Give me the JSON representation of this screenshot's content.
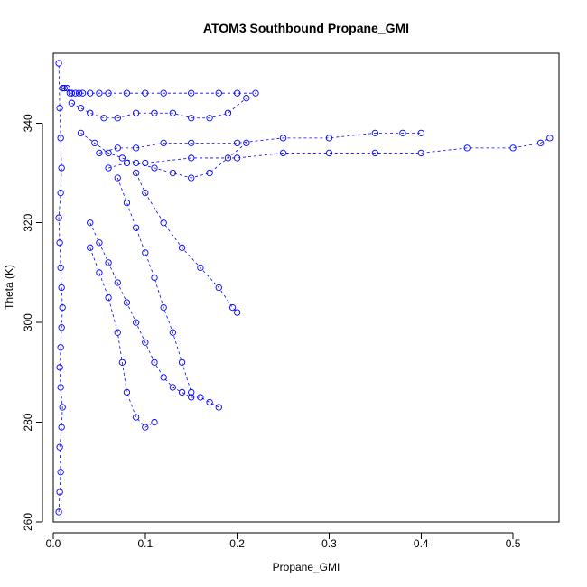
{
  "chart_data": {
    "type": "scatter",
    "title": "ATOM3 Southbound Propane_GMI",
    "xlabel": "Propane_GMI",
    "ylabel": "Theta (K)",
    "xlim": [
      0.0,
      0.55
    ],
    "ylim": [
      260,
      354
    ],
    "xticks": [
      0.0,
      0.1,
      0.2,
      0.3,
      0.4,
      0.5
    ],
    "yticks": [
      260,
      280,
      300,
      320,
      340
    ],
    "xtick_labels": [
      "0.0",
      "0.1",
      "0.2",
      "0.3",
      "0.4",
      "0.5"
    ],
    "ytick_labels": [
      "260",
      "280",
      "300",
      "320",
      "340"
    ],
    "grid": false,
    "legend": "none",
    "color": "#0000ff",
    "marker": "open-circle",
    "series": [
      {
        "x": [
          0.006,
          0.007,
          0.008,
          0.007,
          0.009,
          0.01,
          0.008,
          0.007,
          0.008,
          0.009,
          0.01,
          0.009,
          0.008,
          0.007,
          0.006,
          0.008,
          0.009,
          0.008,
          0.007,
          0.006
        ],
        "y": [
          262,
          266,
          270,
          275,
          279,
          283,
          287,
          291,
          295,
          299,
          303,
          307,
          311,
          316,
          321,
          326,
          331,
          337,
          343,
          352
        ]
      },
      {
        "x": [
          0.01,
          0.012,
          0.015,
          0.018,
          0.02,
          0.024,
          0.028,
          0.032,
          0.04,
          0.05,
          0.06,
          0.08,
          0.1,
          0.12,
          0.15,
          0.18,
          0.2,
          0.22
        ],
        "y": [
          347,
          347,
          347,
          346,
          346,
          346,
          346,
          346,
          346,
          346,
          346,
          346,
          346,
          346,
          346,
          346,
          346,
          346
        ]
      },
      {
        "x": [
          0.05,
          0.07,
          0.09,
          0.12,
          0.15,
          0.2,
          0.25,
          0.3,
          0.35,
          0.38,
          0.4
        ],
        "y": [
          334,
          335,
          335,
          336,
          336,
          336,
          337,
          337,
          338,
          338,
          338
        ]
      },
      {
        "x": [
          0.06,
          0.08,
          0.1,
          0.15,
          0.2,
          0.25,
          0.3,
          0.35,
          0.4,
          0.45,
          0.5,
          0.53,
          0.54
        ],
        "y": [
          331,
          332,
          332,
          333,
          333,
          334,
          334,
          334,
          334,
          335,
          335,
          336,
          337
        ]
      },
      {
        "x": [
          0.04,
          0.05,
          0.06,
          0.07,
          0.08,
          0.09,
          0.1,
          0.11,
          0.12,
          0.13,
          0.14,
          0.15,
          0.16,
          0.17,
          0.18
        ],
        "y": [
          320,
          316,
          312,
          308,
          304,
          300,
          296,
          292,
          289,
          287,
          286,
          285,
          285,
          284,
          283
        ]
      },
      {
        "x": [
          0.04,
          0.05,
          0.06,
          0.07,
          0.075,
          0.08,
          0.09,
          0.1,
          0.11
        ],
        "y": [
          315,
          310,
          305,
          298,
          292,
          286,
          281,
          279,
          280
        ]
      },
      {
        "x": [
          0.07,
          0.08,
          0.09,
          0.1,
          0.11,
          0.12,
          0.13,
          0.14,
          0.15
        ],
        "y": [
          329,
          324,
          319,
          314,
          309,
          303,
          298,
          292,
          286
        ]
      },
      {
        "x": [
          0.09,
          0.1,
          0.12,
          0.14,
          0.16,
          0.18,
          0.195,
          0.2
        ],
        "y": [
          330,
          326,
          320,
          315,
          311,
          307,
          303,
          302
        ]
      },
      {
        "x": [
          0.03,
          0.045,
          0.06,
          0.075,
          0.09,
          0.11,
          0.13,
          0.15,
          0.17,
          0.19,
          0.21
        ],
        "y": [
          338,
          336,
          334,
          333,
          332,
          331,
          330,
          329,
          330,
          333,
          336
        ]
      },
      {
        "x": [
          0.02,
          0.03,
          0.04,
          0.055,
          0.07,
          0.09,
          0.11,
          0.13,
          0.15,
          0.17,
          0.19,
          0.21
        ],
        "y": [
          344,
          343,
          342,
          341,
          341,
          342,
          342,
          342,
          341,
          341,
          342,
          345
        ]
      }
    ]
  }
}
